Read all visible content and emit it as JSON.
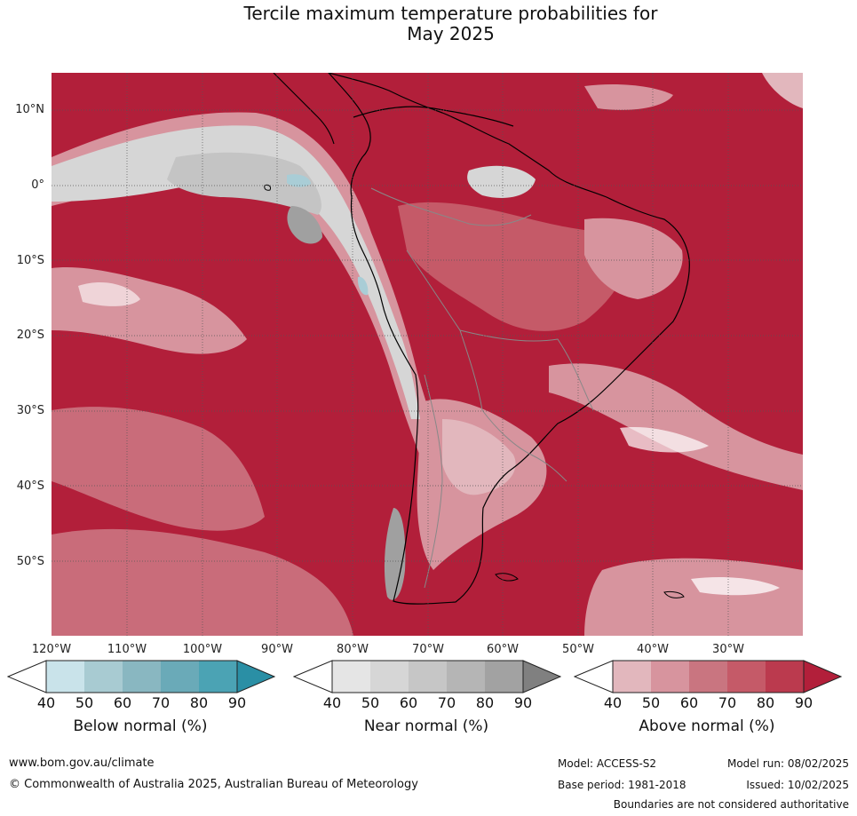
{
  "title_line1": "Tercile maximum temperature probabilities for",
  "title_line2": "May 2025",
  "map": {
    "lat_labels": [
      "10°N",
      "0°",
      "10°S",
      "20°S",
      "30°S",
      "40°S",
      "50°S"
    ],
    "lon_labels": [
      "120°W",
      "110°W",
      "100°W",
      "90°W",
      "80°W",
      "70°W",
      "60°W",
      "50°W",
      "40°W",
      "30°W"
    ],
    "colors": {
      "ocean_base": "#b21f3a",
      "above_50": "#d7949e",
      "above_60": "#c96c7a",
      "above_70": "#c55a68",
      "above_80": "#bd3a4f",
      "near_50": "#d6d6d6",
      "near_60": "#c4c4c4",
      "near_80": "#a0a0a0",
      "below_50": "#a9cdd6",
      "coastline": "#000000",
      "borders": "#888888",
      "gridline": "#555555"
    }
  },
  "legends": [
    {
      "title": "Below normal (%)",
      "ticks": [
        "40",
        "50",
        "60",
        "70",
        "80",
        "90"
      ],
      "colors": [
        "#ffffff",
        "#c9e3ea",
        "#a8cbd2",
        "#89b7c1",
        "#6aaab8",
        "#4ba3b4",
        "#2a8fa5"
      ]
    },
    {
      "title": "Near normal (%)",
      "ticks": [
        "40",
        "50",
        "60",
        "70",
        "80",
        "90"
      ],
      "colors": [
        "#ffffff",
        "#e5e5e5",
        "#d6d6d6",
        "#c6c6c6",
        "#b5b5b5",
        "#a2a2a2",
        "#808080"
      ]
    },
    {
      "title": "Above normal (%)",
      "ticks": [
        "40",
        "50",
        "60",
        "70",
        "80",
        "90"
      ],
      "colors": [
        "#ffffff",
        "#e2b7bd",
        "#d7949e",
        "#c97580",
        "#c55a68",
        "#bb3a4e",
        "#b21f3a"
      ]
    }
  ],
  "footer": {
    "website": "www.bom.gov.au/climate",
    "copyright": "© Commonwealth of Australia 2025, Australian Bureau of Meteorology",
    "model": "Model: ACCESS-S2",
    "model_run": "Model run: 08/02/2025",
    "base_period": "Base period: 1981-2018",
    "issued": "Issued: 10/02/2025",
    "disclaimer": "Boundaries are not considered authoritative"
  }
}
